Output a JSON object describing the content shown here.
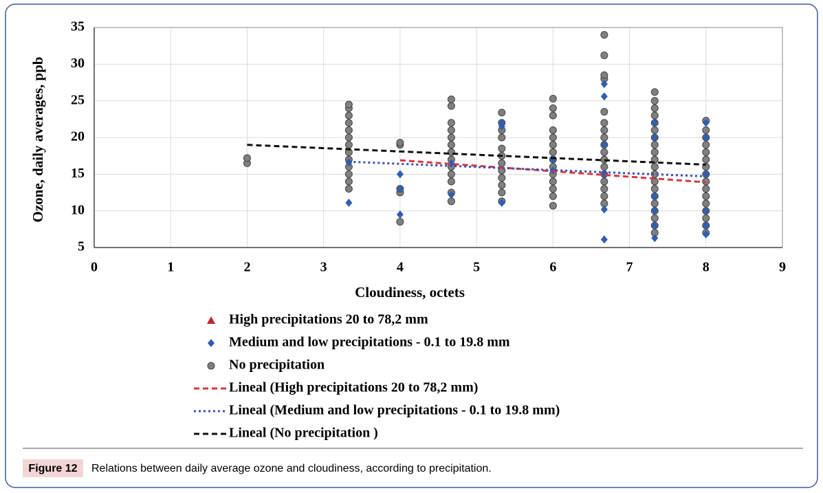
{
  "chart_data": {
    "type": "scatter",
    "xlabel": "Cloudiness, octets",
    "ylabel": "Ozone, daily averages, ppb",
    "xlim": [
      0,
      9
    ],
    "xticks": [
      0,
      1,
      2,
      3,
      4,
      5,
      6,
      7,
      8,
      9
    ],
    "ylim": [
      5,
      35
    ],
    "yticks": [
      5,
      10,
      15,
      20,
      25,
      30,
      35
    ],
    "grid": true,
    "series": [
      {
        "name": "High precipitations 20 to 78,2 mm",
        "color": "#c0272d",
        "marker": "triangle",
        "x": [],
        "values": []
      },
      {
        "name": "Medium and low precipitations - 0.1 to 19.8 mm",
        "color": "#2f5fb0",
        "marker": "diamond",
        "x": [
          3.33,
          3.33,
          4,
          4,
          4,
          4.67,
          4.67,
          5.33,
          5.33,
          5.33,
          6,
          6,
          6.67,
          6.67,
          6.67,
          6.67,
          6.67,
          6.67,
          7.33,
          7.33,
          7.33,
          7.33,
          7.33,
          7.33,
          8,
          8,
          8,
          8,
          8,
          8
        ],
        "values": [
          11.1,
          16.6,
          9.5,
          13,
          15,
          12.2,
          16.5,
          11.1,
          21.5,
          22,
          15.5,
          17,
          6.1,
          10.2,
          25.6,
          27.3,
          15,
          19,
          6.3,
          8,
          10,
          12,
          20,
          22,
          6.8,
          8,
          10,
          15,
          20,
          22
        ]
      },
      {
        "name": "No precipitation",
        "color": "#808080",
        "marker": "circle",
        "x": [
          2,
          2,
          3.33,
          3.33,
          3.33,
          3.33,
          3.33,
          3.33,
          3.33,
          3.33,
          3.33,
          3.33,
          3.33,
          3.33,
          3.33,
          4,
          4,
          4,
          4,
          4,
          4.67,
          4.67,
          4.67,
          4.67,
          4.67,
          4.67,
          4.67,
          4.67,
          4.67,
          4.67,
          4.67,
          4.67,
          4.67,
          5.33,
          5.33,
          5.33,
          5.33,
          5.33,
          5.33,
          5.33,
          5.33,
          5.33,
          5.33,
          5.33,
          5.33,
          6,
          6,
          6,
          6,
          6,
          6,
          6,
          6,
          6,
          6,
          6,
          6,
          6,
          6,
          6.67,
          6.67,
          6.67,
          6.67,
          6.67,
          6.67,
          6.67,
          6.67,
          6.67,
          6.67,
          6.67,
          6.67,
          6.67,
          6.67,
          6.67,
          6.67,
          6.67,
          7.33,
          7.33,
          7.33,
          7.33,
          7.33,
          7.33,
          7.33,
          7.33,
          7.33,
          7.33,
          7.33,
          7.33,
          7.33,
          7.33,
          7.33,
          7.33,
          7.33,
          7.33,
          7.33,
          7.33,
          8,
          8,
          8,
          8,
          8,
          8,
          8,
          8,
          8,
          8,
          8,
          8,
          8,
          8,
          8,
          8
        ],
        "values": [
          16.5,
          17.2,
          13,
          14,
          15,
          16,
          17,
          18,
          19,
          20,
          21,
          22,
          23,
          24,
          24.5,
          8.5,
          12.5,
          13,
          19,
          19.3,
          11.3,
          12.5,
          14,
          15,
          16,
          17,
          18,
          19,
          20,
          21,
          22,
          24.3,
          25.2,
          11.3,
          12.5,
          13.5,
          14.5,
          15.5,
          16.5,
          17.5,
          18.5,
          20,
          21,
          22,
          23.4,
          10.7,
          12,
          13,
          14,
          15,
          16,
          17,
          18,
          19,
          20,
          21,
          23,
          24,
          25.3,
          11,
          12,
          13,
          14,
          15,
          16,
          17,
          18,
          19,
          20,
          21,
          22,
          23.5,
          28,
          28.5,
          31.2,
          34,
          7,
          8,
          9,
          10,
          11,
          12,
          13,
          14,
          15,
          16,
          17,
          18,
          19,
          20,
          21,
          22,
          23,
          24,
          25,
          26.2,
          7,
          8,
          9,
          10,
          11,
          12,
          13,
          14,
          15,
          16,
          17,
          18,
          19,
          20,
          21,
          22.3
        ]
      },
      {
        "name": "Lineal (High precipitations 20 to 78,2 mm)",
        "color": "#d9363e",
        "dash": "dashed",
        "x": [
          4,
          8
        ],
        "values": [
          16.9,
          13.9
        ]
      },
      {
        "name": "Lineal (Medium and low precipitations - 0.1 to 19.8 mm)",
        "color": "#3a4fb5",
        "dash": "dotted",
        "x": [
          3.33,
          8
        ],
        "values": [
          16.7,
          14.7
        ]
      },
      {
        "name": "Lineal (No precipitation )",
        "color": "#111111",
        "dash": "dashed",
        "x": [
          2,
          8
        ],
        "values": [
          19,
          16.3
        ]
      }
    ]
  },
  "figure": {
    "label": "Figure 12",
    "caption": "Relations between daily average ozone and cloudiness, according to precipitation."
  }
}
